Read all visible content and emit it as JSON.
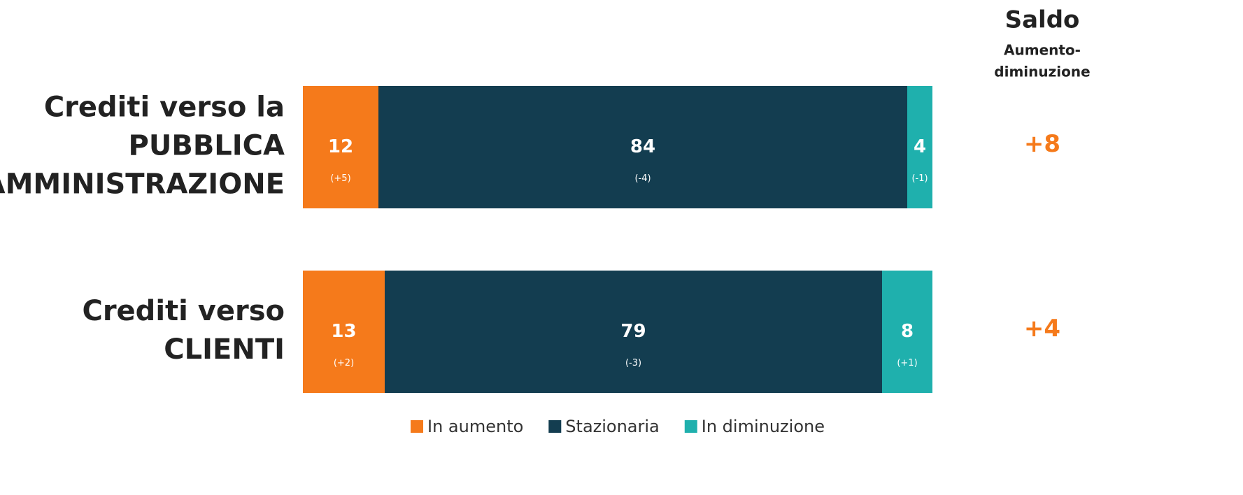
{
  "chart_data": {
    "type": "stacked-bar-horizontal",
    "categories": [
      [
        "Crediti verso la",
        "PUBBLICA",
        "AMMINISTRAZIONE"
      ],
      [
        "Crediti verso",
        "CLIENTI"
      ]
    ],
    "xlim": [
      0,
      100
    ],
    "series": [
      {
        "name": "In aumento",
        "color": "#f57a1b",
        "values": [
          12,
          13
        ],
        "changes": [
          5,
          2
        ],
        "change_labels": [
          "(+5)",
          "(+2)"
        ]
      },
      {
        "name": "Stazionaria",
        "color": "#133d50",
        "values": [
          84,
          79
        ],
        "changes": [
          -4,
          -3
        ],
        "change_labels": [
          "(-4)",
          "(-3)"
        ]
      },
      {
        "name": "In diminuzione",
        "color": "#1fb0ad",
        "values": [
          4,
          8
        ],
        "changes": [
          -1,
          1
        ],
        "change_labels": [
          "(-1)",
          "(+1)"
        ]
      }
    ],
    "saldo": {
      "title": "Saldo",
      "subtitle": [
        "Aumento-",
        "diminuzione"
      ],
      "color": "#f57a1b",
      "values": [
        8,
        4
      ],
      "value_labels": [
        "+8",
        "+4"
      ]
    }
  }
}
